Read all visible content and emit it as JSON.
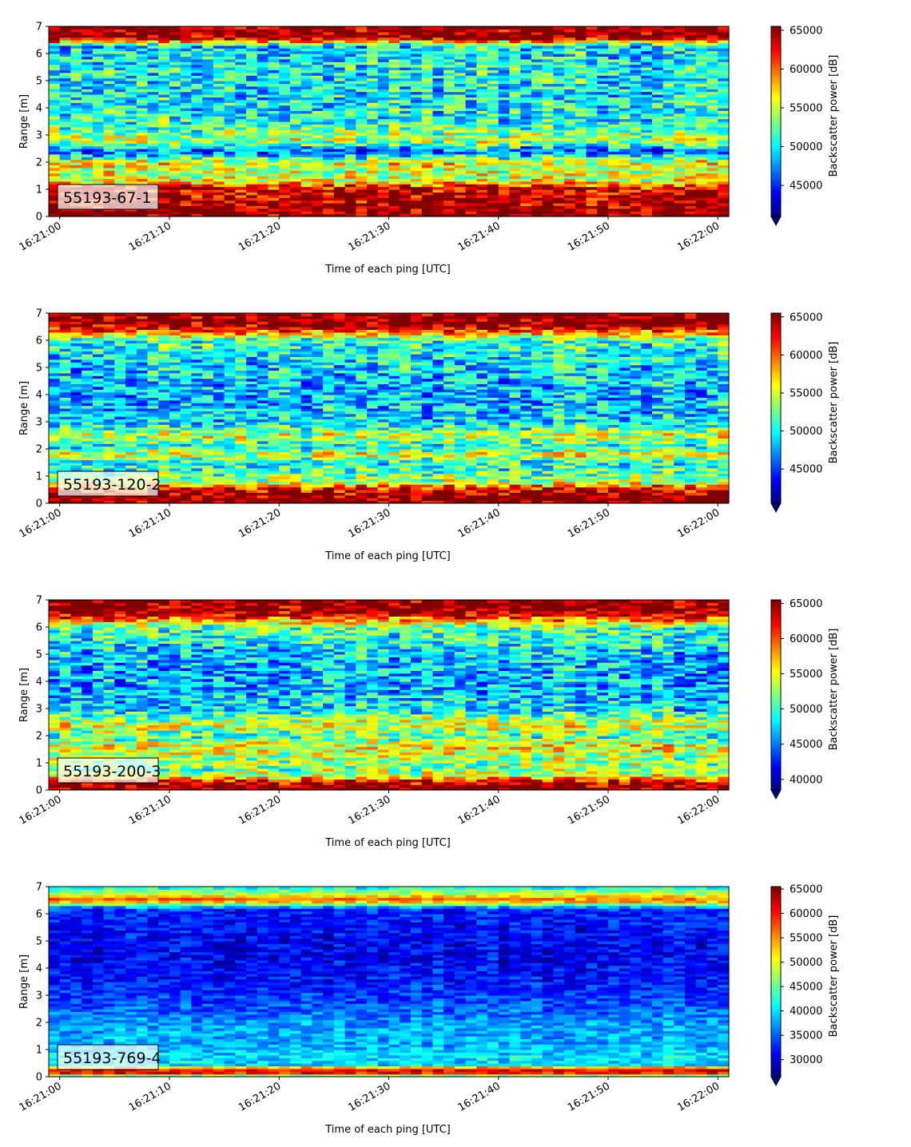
{
  "chart_data": [
    {
      "type": "heatmap",
      "label": "55193-67-1",
      "xlabel": "Time of each ping [UTC]",
      "ylabel": "Range [m]",
      "x_range": [
        "16:20:59",
        "16:22:01"
      ],
      "ylim": [
        0,
        7
      ],
      "x_ticks": [
        "16:21:00",
        "16:21:10",
        "16:21:20",
        "16:21:30",
        "16:21:40",
        "16:21:50",
        "16:22:00"
      ],
      "y_ticks": [
        "0",
        "1",
        "2",
        "3",
        "4",
        "5",
        "6",
        "7"
      ],
      "colorbar": {
        "label": "Backscatter power [dB]",
        "range": [
          41000,
          65500
        ],
        "ticks": [
          45000,
          50000,
          55000,
          60000,
          65000
        ],
        "extend": "min",
        "colormap": "jet"
      },
      "profile": [
        [
          0.0,
          65500
        ],
        [
          0.2,
          65500
        ],
        [
          0.35,
          64800
        ],
        [
          0.8,
          64000
        ],
        [
          1.1,
          63000
        ],
        [
          1.3,
          56000
        ],
        [
          1.6,
          55000
        ],
        [
          2.0,
          56000
        ],
        [
          2.4,
          46000
        ],
        [
          2.8,
          55000
        ],
        [
          3.5,
          51000
        ],
        [
          4.5,
          50000
        ],
        [
          5.5,
          50500
        ],
        [
          6.3,
          49500
        ],
        [
          6.5,
          61000
        ],
        [
          6.6,
          65500
        ],
        [
          7.0,
          65500
        ]
      ],
      "noise": 4500
    },
    {
      "type": "heatmap",
      "label": "55193-120-2",
      "xlabel": "Time of each ping [UTC]",
      "ylabel": "Range [m]",
      "x_range": [
        "16:20:59",
        "16:22:01"
      ],
      "ylim": [
        0,
        7
      ],
      "x_ticks": [
        "16:21:00",
        "16:21:10",
        "16:21:20",
        "16:21:30",
        "16:21:40",
        "16:21:50",
        "16:22:00"
      ],
      "y_ticks": [
        "0",
        "1",
        "2",
        "3",
        "4",
        "5",
        "6",
        "7"
      ],
      "colorbar": {
        "label": "Backscatter power [dB]",
        "range": [
          40500,
          65500
        ],
        "ticks": [
          45000,
          50000,
          55000,
          60000,
          65000
        ],
        "extend": "min",
        "colormap": "jet"
      },
      "profile": [
        [
          0.0,
          65500
        ],
        [
          0.3,
          65000
        ],
        [
          0.55,
          62000
        ],
        [
          0.8,
          54000
        ],
        [
          1.1,
          52000
        ],
        [
          1.5,
          50000
        ],
        [
          1.8,
          56000
        ],
        [
          2.1,
          50000
        ],
        [
          2.5,
          55000
        ],
        [
          3.0,
          49000
        ],
        [
          4.0,
          48000
        ],
        [
          5.0,
          49000
        ],
        [
          6.0,
          51000
        ],
        [
          6.4,
          62000
        ],
        [
          6.6,
          65500
        ],
        [
          7.0,
          65500
        ]
      ],
      "noise": 4500
    },
    {
      "type": "heatmap",
      "label": "55193-200-3",
      "xlabel": "Time of each ping [UTC]",
      "ylabel": "Range [m]",
      "x_range": [
        "16:20:59",
        "16:22:01"
      ],
      "ylim": [
        0,
        7
      ],
      "x_ticks": [
        "16:21:00",
        "16:21:10",
        "16:21:20",
        "16:21:30",
        "16:21:40",
        "16:21:50",
        "16:22:00"
      ],
      "y_ticks": [
        "0",
        "1",
        "2",
        "3",
        "4",
        "5",
        "6",
        "7"
      ],
      "colorbar": {
        "label": "Backscatter power [dB]",
        "range": [
          38500,
          65500
        ],
        "ticks": [
          40000,
          45000,
          50000,
          55000,
          60000,
          65000
        ],
        "extend": "min",
        "colormap": "jet"
      },
      "profile": [
        [
          0.0,
          65500
        ],
        [
          0.3,
          64000
        ],
        [
          0.5,
          55000
        ],
        [
          0.8,
          52000
        ],
        [
          1.2,
          53000
        ],
        [
          1.6,
          56000
        ],
        [
          2.0,
          50000
        ],
        [
          2.4,
          55000
        ],
        [
          3.0,
          48000
        ],
        [
          4.0,
          46500
        ],
        [
          5.0,
          47500
        ],
        [
          6.0,
          51000
        ],
        [
          6.4,
          62000
        ],
        [
          6.6,
          65500
        ],
        [
          7.0,
          65500
        ]
      ],
      "noise": 5000
    },
    {
      "type": "heatmap",
      "label": "55193-769-4",
      "xlabel": "Time of each ping [UTC]",
      "ylabel": "Range [m]",
      "x_range": [
        "16:20:59",
        "16:22:01"
      ],
      "ylim": [
        0,
        7
      ],
      "x_ticks": [
        "16:21:00",
        "16:21:10",
        "16:21:20",
        "16:21:30",
        "16:21:40",
        "16:21:50",
        "16:22:00"
      ],
      "y_ticks": [
        "0",
        "1",
        "2",
        "3",
        "4",
        "5",
        "6",
        "7"
      ],
      "colorbar": {
        "label": "Backscatter power [dB]",
        "range": [
          26500,
          65500
        ],
        "ticks": [
          30000,
          35000,
          40000,
          45000,
          50000,
          55000,
          60000,
          65000
        ],
        "extend": "min",
        "colormap": "jet"
      },
      "profile": [
        [
          0.0,
          40000
        ],
        [
          0.15,
          60000
        ],
        [
          0.3,
          61000
        ],
        [
          0.45,
          40000
        ],
        [
          0.8,
          40000
        ],
        [
          1.2,
          38000
        ],
        [
          1.8,
          38000
        ],
        [
          2.5,
          35000
        ],
        [
          3.5,
          32000
        ],
        [
          4.5,
          31000
        ],
        [
          5.5,
          31500
        ],
        [
          6.2,
          33000
        ],
        [
          6.5,
          58000
        ],
        [
          6.7,
          50000
        ],
        [
          7.0,
          41000
        ]
      ],
      "noise": 3500
    }
  ]
}
